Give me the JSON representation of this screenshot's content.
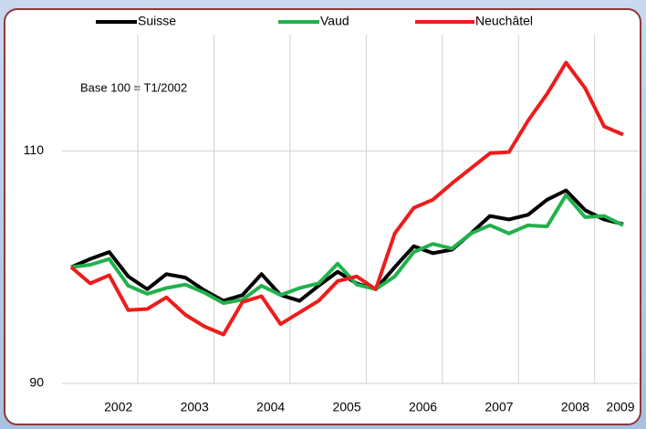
{
  "chart_data": {
    "type": "line",
    "annotation": "Base 100 = T1/2002",
    "categories": [
      null,
      null,
      "2002",
      null,
      null,
      null,
      "2003",
      null,
      null,
      null,
      "2004",
      null,
      null,
      null,
      "2005",
      null,
      null,
      null,
      "2006",
      null,
      null,
      null,
      "2007",
      null,
      null,
      null,
      "2008",
      null,
      null,
      "2009"
    ],
    "series": [
      {
        "name": "Suisse",
        "color": "#000000",
        "values": [
          100,
          100.7,
          101.3,
          99.2,
          98.1,
          99.4,
          99.1,
          98.0,
          97.1,
          97.6,
          99.4,
          97.6,
          97.1,
          98.4,
          99.6,
          98.6,
          98.1,
          100.0,
          101.8,
          101.2,
          101.5,
          102.9,
          104.4,
          104.1,
          104.5,
          105.8,
          106.6,
          104.9,
          104.1,
          103.7
        ]
      },
      {
        "name": "Vaud",
        "color": "#22b14c",
        "values": [
          100,
          100.2,
          100.7,
          98.4,
          97.7,
          98.2,
          98.5,
          97.8,
          96.9,
          97.2,
          98.4,
          97.6,
          98.2,
          98.6,
          100.3,
          98.5,
          98.1,
          99.2,
          101.3,
          102.0,
          101.6,
          102.9,
          103.6,
          102.9,
          103.6,
          103.5,
          106.2,
          104.3,
          104.4,
          103.6
        ]
      },
      {
        "name": "Neuchâtel",
        "color": "#ee1c1c",
        "values": [
          100,
          98.6,
          99.3,
          96.3,
          96.4,
          97.4,
          95.9,
          94.9,
          94.2,
          97.0,
          97.5,
          95.1,
          96.1,
          97.1,
          98.8,
          99.2,
          98.1,
          102.9,
          105.1,
          105.8,
          107.2,
          108.5,
          109.8,
          109.9,
          112.6,
          114.9,
          117.6,
          115.4,
          112.1,
          111.4
        ]
      }
    ],
    "ylim": [
      90,
      120
    ],
    "yticks": [
      90,
      110
    ],
    "grid": true
  }
}
